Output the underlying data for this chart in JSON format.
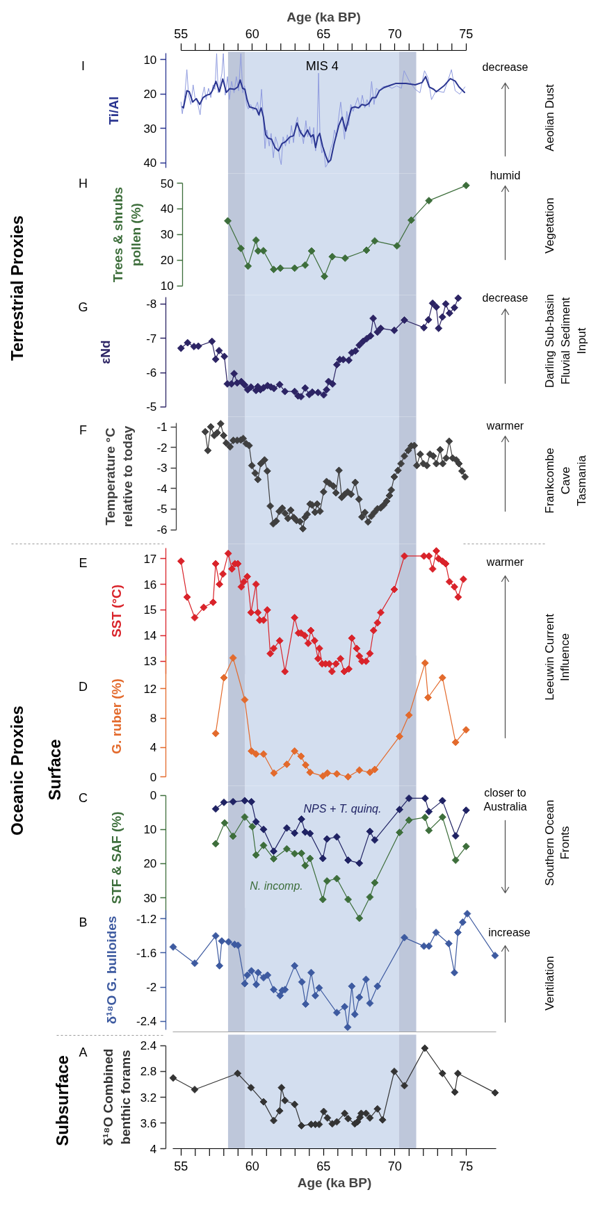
{
  "chart_data": [
    {
      "type": "line",
      "title": "I",
      "ylabel": "Ti/Al",
      "xlabel": "Age (ka BP)",
      "xlim": [
        55,
        75
      ],
      "xticks": [
        55,
        {
          "value": 56,
          "label": null
        },
        {
          "value": 57,
          "label": null
        },
        {
          "value": 58,
          "label": null
        },
        {
          "value": 59,
          "label": null
        },
        60,
        {
          "value": 61,
          "label": null
        },
        {
          "value": 62,
          "label": null
        },
        {
          "value": 63,
          "label": null
        },
        {
          "value": 64,
          "label": null
        },
        65,
        {
          "value": 66,
          "label": null
        },
        {
          "value": 67,
          "label": null
        },
        {
          "value": 68,
          "label": null
        },
        {
          "value": 69,
          "label": null
        },
        70,
        {
          "value": 71,
          "label": null
        },
        {
          "value": 72,
          "label": null
        },
        {
          "value": 73,
          "label": null
        },
        {
          "value": 74,
          "label": null
        },
        75
      ],
      "ylim": [
        41.5,
        8
      ],
      "yticks": [
        10,
        20,
        30,
        40
      ],
      "series": [
        {
          "color": "#8e9ade",
          "x": [
            55.0,
            55.09,
            55.25,
            55.41,
            55.53,
            55.69,
            55.85,
            55.98,
            56.15,
            56.34,
            56.47,
            56.63,
            56.76,
            56.93,
            57.09,
            57.25,
            57.38,
            57.5,
            57.61,
            57.74,
            57.87,
            57.97,
            58.1,
            58.26,
            58.39,
            58.55,
            58.72,
            58.88,
            59.04,
            59.2,
            59.33,
            59.46,
            59.59,
            59.72,
            59.89,
            60.05,
            60.21,
            60.37,
            60.5,
            60.65,
            60.78,
            60.89,
            61.02,
            61.19,
            61.32,
            61.48,
            61.63,
            61.79,
            61.92,
            62.03,
            62.16,
            62.33,
            62.46,
            62.6,
            62.75,
            62.89,
            63.04,
            63.17,
            63.3,
            63.43,
            63.59,
            63.76,
            63.89,
            64.03,
            64.18,
            64.31,
            64.44,
            64.55,
            64.65,
            64.75,
            64.88,
            65.01,
            65.14,
            65.25,
            65.37,
            65.5,
            65.63,
            65.77,
            65.9,
            66.07,
            66.2,
            66.34,
            66.47,
            66.63,
            66.76,
            66.91,
            67.07,
            67.24,
            67.4,
            67.56,
            67.72,
            67.89,
            68.05,
            68.21,
            68.37,
            68.54,
            68.7,
            68.91,
            69.15,
            69.48,
            69.8,
            70.13,
            70.46,
            70.65,
            71.02,
            71.43,
            71.76,
            72.08,
            72.33,
            72.57,
            72.89,
            73.44,
            73.71,
            73.97,
            74.23,
            74.55,
            74.92
          ],
          "values": [
            22.3,
            25.7,
            21.0,
            12.9,
            20.3,
            23.0,
            17.3,
            21.0,
            22.3,
            26.0,
            21.0,
            17.9,
            21.6,
            18.3,
            21.0,
            17.3,
            18.6,
            8.2,
            19.6,
            16.9,
            13.9,
            8.2,
            20.3,
            14.9,
            21.6,
            16.3,
            19.6,
            14.9,
            19.0,
            8.2,
            19.6,
            17.6,
            23.0,
            24.3,
            23.0,
            24.7,
            24.0,
            22.3,
            26.4,
            18.6,
            27.7,
            35.8,
            30.4,
            35.1,
            31.4,
            38.5,
            32.4,
            34.8,
            38.5,
            40.5,
            32.4,
            35.1,
            31.8,
            34.4,
            29.1,
            34.1,
            28.7,
            26.7,
            32.4,
            30.4,
            34.4,
            27.7,
            32.4,
            29.4,
            34.4,
            29.7,
            36.5,
            31.8,
            13.9,
            32.4,
            37.1,
            35.8,
            41.2,
            40.5,
            38.5,
            35.8,
            34.4,
            30.4,
            32.4,
            26.4,
            22.3,
            27.7,
            33.1,
            25.0,
            29.1,
            23.0,
            25.0,
            23.0,
            21.0,
            24.0,
            20.3,
            24.0,
            21.6,
            23.7,
            16.3,
            23.0,
            18.3,
            19.0,
            17.9,
            17.6,
            18.3,
            17.6,
            18.3,
            13.2,
            16.3,
            18.6,
            19.6,
            13.2,
            15.3,
            21.6,
            19.0,
            19.5,
            16.2,
            12.9,
            19.0,
            20.0,
            17.9
          ]
        },
        {
          "color": "#2a3590",
          "x": [
            55.09,
            55.17,
            55.41,
            55.58,
            55.82,
            56.07,
            56.31,
            56.55,
            56.8,
            57.04,
            57.2,
            57.45,
            57.69,
            57.93,
            58.18,
            58.42,
            58.75,
            58.99,
            59.15,
            59.32,
            59.48,
            59.64,
            59.8,
            60.05,
            60.29,
            60.46,
            60.62,
            60.78,
            60.94,
            61.11,
            61.35,
            61.59,
            61.84,
            62.08,
            62.33,
            62.65,
            62.89,
            63.14,
            63.38,
            63.63,
            63.87,
            64.11,
            64.28,
            64.44,
            64.6,
            64.73,
            64.93,
            65.17,
            65.33,
            65.5,
            65.74,
            66.07,
            66.31,
            66.55,
            66.8,
            66.96,
            67.2,
            67.45,
            67.69,
            67.93,
            68.18,
            68.42,
            68.67,
            68.91,
            69.24,
            69.64,
            70.05,
            70.78,
            71.43,
            71.92,
            72.16,
            72.41,
            72.73,
            72.91,
            73.44,
            73.89,
            74.23,
            74.5,
            74.89
          ],
          "values": [
            23.7,
            24.0,
            19.0,
            19.3,
            22.3,
            21.3,
            23.0,
            21.0,
            20.3,
            20.0,
            19.0,
            16.3,
            19.3,
            15.6,
            19.5,
            18.4,
            18.6,
            17.9,
            15.9,
            18.3,
            18.6,
            21.7,
            23.7,
            24.0,
            24.3,
            26.0,
            24.0,
            26.7,
            31.8,
            32.8,
            33.1,
            35.5,
            36.5,
            34.4,
            33.8,
            32.4,
            32.1,
            28.4,
            31.1,
            32.4,
            30.4,
            32.4,
            31.8,
            35.5,
            32.4,
            31.4,
            35.1,
            38.1,
            39.8,
            39.1,
            34.4,
            29.1,
            26.7,
            30.7,
            26.4,
            24.0,
            23.7,
            24.0,
            23.0,
            23.3,
            22.7,
            21.0,
            21.0,
            19.0,
            18.1,
            17.5,
            16.9,
            16.9,
            17.3,
            16.6,
            14.9,
            17.9,
            18.6,
            19.3,
            17.6,
            15.5,
            16.2,
            17.9,
            19.5
          ]
        }
      ],
      "bands": [
        {
          "axis": "x",
          "from": 58.3,
          "to": 59.5,
          "color": "#bec7da"
        },
        {
          "axis": "x",
          "from": 59.5,
          "to": 70.3,
          "color": "#d3deef",
          "label": "MIS 4"
        },
        {
          "axis": "x",
          "from": 70.3,
          "to": 71.5,
          "color": "#bec7da"
        }
      ],
      "annotations": [
        "decrease",
        "Aeolian Dust",
        "Terrestrial Proxies"
      ]
    },
    {
      "type": "line",
      "title": "H",
      "ylabel": "Trees & shrubs pollen (%)",
      "xlim": [
        55,
        75
      ],
      "tick_labels": "y",
      "ylim": [
        10,
        50
      ],
      "yticks": [
        10,
        20,
        30,
        40,
        50
      ],
      "marker": "diamond",
      "series": [
        {
          "color": "#3d6e3b",
          "x": [
            58.28,
            59.2,
            59.7,
            60.26,
            60.41,
            60.78,
            61.5,
            61.97,
            62.97,
            63.71,
            64.16,
            65.06,
            65.61,
            66.51,
            68.01,
            68.59,
            70.15,
            71.15,
            72.39,
            75.0
          ],
          "values": [
            35.3,
            24.6,
            17.7,
            27.8,
            23.6,
            23.7,
            16.4,
            16.9,
            16.9,
            18.1,
            23.6,
            13.7,
            21.4,
            20.8,
            23.9,
            27.5,
            25.6,
            35.6,
            43.2,
            49.1
          ]
        }
      ],
      "bands": [
        {
          "axis": "x",
          "from": 58.3,
          "to": 59.5,
          "color": "#bec7da"
        },
        {
          "axis": "x",
          "from": 59.5,
          "to": 70.3,
          "color": "#d3deef"
        },
        {
          "axis": "x",
          "from": 70.3,
          "to": 71.5,
          "color": "#bec7da"
        }
      ],
      "annotations": [
        "humid",
        "Vegetation"
      ]
    },
    {
      "type": "line",
      "title": "G",
      "ylabel": "εNd",
      "xlim": [
        55,
        75
      ],
      "tick_labels": "y",
      "ylim": [
        -5,
        -8.2
      ],
      "yticks": [
        -8,
        -7,
        -6,
        -5
      ],
      "marker": "diamond",
      "series": [
        {
          "color": "#2c2464",
          "x": [
            55.0,
            55.46,
            55.91,
            56.22,
            57.17,
            57.43,
            57.67,
            58.04,
            58.25,
            58.54,
            58.73,
            58.94,
            59.23,
            59.47,
            59.68,
            59.91,
            60.26,
            60.39,
            60.57,
            60.79,
            61.07,
            61.31,
            61.52,
            61.92,
            62.29,
            62.97,
            63.21,
            63.42,
            63.71,
            64.0,
            64.21,
            64.61,
            65.01,
            65.21,
            65.35,
            65.63,
            65.93,
            66.14,
            66.38,
            66.77,
            66.98,
            67.24,
            67.51,
            67.77,
            68.03,
            68.3,
            68.48,
            68.78,
            69.01,
            69.96,
            70.67,
            72.04,
            72.36,
            72.65,
            72.91,
            73.07,
            73.34,
            73.57,
            73.83,
            74.18,
            74.44
          ],
          "values": [
            -6.71,
            -6.87,
            -6.76,
            -6.77,
            -6.91,
            -6.39,
            -6.64,
            -6.47,
            -5.67,
            -5.67,
            -5.97,
            -5.7,
            -5.74,
            -5.64,
            -5.5,
            -5.58,
            -5.48,
            -5.59,
            -5.5,
            -5.56,
            -5.62,
            -5.58,
            -5.54,
            -5.65,
            -5.45,
            -5.45,
            -5.32,
            -5.3,
            -5.55,
            -5.36,
            -5.43,
            -5.42,
            -5.35,
            -5.5,
            -5.74,
            -5.67,
            -6.23,
            -6.38,
            -6.38,
            -6.36,
            -6.58,
            -6.63,
            -6.8,
            -6.91,
            -6.99,
            -7.07,
            -7.58,
            -7.18,
            -7.29,
            -7.23,
            -7.53,
            -7.31,
            -7.54,
            -8.02,
            -7.91,
            -7.29,
            -7.62,
            -8.0,
            -7.73,
            -7.89,
            -8.17
          ]
        }
      ],
      "bands": [
        {
          "axis": "x",
          "from": 58.3,
          "to": 59.5,
          "color": "#bec7da"
        },
        {
          "axis": "x",
          "from": 59.5,
          "to": 70.3,
          "color": "#d3deef"
        },
        {
          "axis": "x",
          "from": 70.3,
          "to": 71.5,
          "color": "#bec7da"
        }
      ],
      "annotations": [
        "decrease",
        "Darling Sub-basin Fluvial Sediment Input"
      ]
    },
    {
      "type": "line",
      "title": "F",
      "ylabel": "Temperature °C relative to today",
      "xlim": [
        55,
        75
      ],
      "tick_labels": "y",
      "ylim": [
        -6,
        -0.8
      ],
      "yticks": [
        -6,
        -5,
        -4,
        -3,
        -2,
        -1
      ],
      "marker": "diamond",
      "series": [
        {
          "color": "#3f3f3f",
          "x": [
            56.7,
            56.88,
            57.09,
            57.33,
            57.54,
            57.78,
            57.99,
            58.17,
            58.44,
            58.67,
            58.94,
            59.2,
            59.36,
            59.57,
            59.78,
            59.97,
            60.2,
            60.39,
            60.6,
            60.86,
            61.05,
            61.26,
            61.47,
            61.68,
            61.89,
            62.1,
            62.3,
            62.5,
            62.7,
            62.9,
            63.1,
            63.35,
            63.55,
            63.7,
            63.85,
            64.05,
            64.2,
            64.4,
            64.55,
            64.75,
            65.0,
            65.21,
            65.42,
            65.69,
            65.87,
            66.08,
            66.27,
            66.48,
            66.69,
            66.93,
            67.22,
            67.48,
            67.69,
            67.9,
            68.12,
            68.35,
            68.56,
            68.78,
            69.01,
            69.22,
            69.43,
            69.62,
            69.75,
            69.96,
            70.22,
            70.43,
            70.67,
            70.94,
            71.15,
            71.36,
            71.54,
            71.78,
            71.99,
            72.25,
            72.46,
            72.7,
            72.91,
            73.18,
            73.36,
            73.6,
            73.81,
            74.05,
            74.31,
            74.5,
            74.71,
            74.92
          ],
          "values": [
            -1.24,
            -2.15,
            -1.0,
            -1.42,
            -1.29,
            -0.85,
            -1.42,
            -1.79,
            -1.97,
            -1.66,
            -1.66,
            -1.64,
            -1.57,
            -1.82,
            -1.91,
            -2.88,
            -3.25,
            -3.56,
            -2.79,
            -2.61,
            -3.15,
            -4.85,
            -5.71,
            -5.58,
            -5.11,
            -4.95,
            -5.2,
            -5.45,
            -5.05,
            -5.4,
            -5.55,
            -5.6,
            -5.95,
            -5.4,
            -5.25,
            -4.75,
            -4.8,
            -5.15,
            -4.75,
            -5.1,
            -4.16,
            -3.66,
            -3.75,
            -3.88,
            -4.21,
            -3.12,
            -4.43,
            -4.28,
            -4.16,
            -4.28,
            -3.7,
            -4.52,
            -5.38,
            -5.16,
            -5.62,
            -5.34,
            -5.16,
            -4.98,
            -4.94,
            -4.8,
            -4.61,
            -4.34,
            -4.07,
            -3.43,
            -3.12,
            -2.79,
            -2.42,
            -2.15,
            -1.93,
            -1.91,
            -2.88,
            -2.33,
            -2.79,
            -2.88,
            -2.33,
            -2.42,
            -2.79,
            -2.11,
            -2.79,
            -2.52,
            -1.7,
            -2.52,
            -2.61,
            -2.79,
            -3.15,
            -3.43
          ]
        }
      ],
      "bands": [
        {
          "axis": "x",
          "from": 58.3,
          "to": 59.5,
          "color": "#bec7da"
        },
        {
          "axis": "x",
          "from": 59.5,
          "to": 70.3,
          "color": "#d3deef"
        },
        {
          "axis": "x",
          "from": 70.3,
          "to": 71.5,
          "color": "#bec7da"
        }
      ],
      "annotations": [
        "warmer",
        "Frankcombe Cave Tasmania"
      ]
    },
    {
      "type": "line",
      "title": "E",
      "ylabel": "SST (°C)",
      "xlim": [
        55,
        75
      ],
      "tick_labels": "y",
      "ylim": [
        12.5,
        17.4
      ],
      "yticks": [
        13,
        14,
        15,
        16,
        17
      ],
      "marker": "diamond",
      "series": [
        {
          "color": "#d9232a",
          "x": [
            55.0,
            55.43,
            55.96,
            56.59,
            57.25,
            57.43,
            57.7,
            57.94,
            58.31,
            58.57,
            58.78,
            58.99,
            59.23,
            59.41,
            59.65,
            59.91,
            60.26,
            60.39,
            60.52,
            60.79,
            61.05,
            61.26,
            61.5,
            61.92,
            62.29,
            62.97,
            63.24,
            63.42,
            63.68,
            63.92,
            64.11,
            64.37,
            64.61,
            64.71,
            64.9,
            65.14,
            65.4,
            65.59,
            65.87,
            66.19,
            66.45,
            66.77,
            66.98,
            67.32,
            67.51,
            67.69,
            67.98,
            68.25,
            68.51,
            68.78,
            69.01,
            69.96,
            70.67,
            72.04,
            72.39,
            72.65,
            72.91,
            73.07,
            73.34,
            73.57,
            73.83,
            74.18,
            74.44,
            74.81
          ],
          "values": [
            16.9,
            15.5,
            14.7,
            15.1,
            15.3,
            16.8,
            16.0,
            16.4,
            17.2,
            16.6,
            16.8,
            16.8,
            15.9,
            16.1,
            16.3,
            14.9,
            16.0,
            14.9,
            14.6,
            14.6,
            15.0,
            13.3,
            13.5,
            13.8,
            12.6,
            14.7,
            14.1,
            14.1,
            14.0,
            13.7,
            14.2,
            13.8,
            13.1,
            13.5,
            12.9,
            12.9,
            12.9,
            12.6,
            12.9,
            13.1,
            12.6,
            12.7,
            13.9,
            13.5,
            13.2,
            13.0,
            13.0,
            13.3,
            14.2,
            14.5,
            14.9,
            15.8,
            17.1,
            17.1,
            17.1,
            16.6,
            17.3,
            17.0,
            16.9,
            16.8,
            16.1,
            15.9,
            15.5,
            16.2
          ]
        }
      ],
      "bands": [
        {
          "axis": "x",
          "from": 58.3,
          "to": 59.5,
          "color": "#bec7da"
        },
        {
          "axis": "x",
          "from": 59.5,
          "to": 70.3,
          "color": "#d3deef"
        },
        {
          "axis": "x",
          "from": 70.3,
          "to": 71.5,
          "color": "#bec7da"
        }
      ],
      "annotations": [
        "warmer",
        "Leeuwin Current Influence",
        "Oceanic Proxies"
      ]
    },
    {
      "type": "line",
      "title": "D",
      "ylabel": "G. ruber (%)",
      "xlim": [
        55,
        75
      ],
      "tick_labels": "y",
      "ylim": [
        0,
        16.5
      ],
      "yticks": [
        0,
        4,
        8,
        12
      ],
      "marker": "diamond",
      "series": [
        {
          "color": "#e36a2c",
          "x": [
            57.43,
            58.01,
            58.65,
            59.47,
            59.94,
            60.26,
            60.79,
            61.52,
            62.42,
            62.97,
            63.42,
            63.74,
            64.05,
            64.95,
            65.27,
            65.93,
            66.72,
            67.51,
            68.25,
            68.59,
            70.33,
            70.99,
            72.12,
            72.33,
            73.34,
            74.26,
            75.0
          ],
          "values": [
            5.9,
            13.5,
            16.2,
            10.5,
            3.5,
            3.1,
            3.1,
            0.5,
            1.7,
            3.5,
            2.8,
            1.6,
            0.6,
            0.1,
            0.5,
            0.4,
            0.0,
            0.9,
            0.6,
            1.0,
            5.5,
            8.4,
            15.5,
            10.8,
            13.5,
            4.7,
            6.4
          ]
        }
      ],
      "bands": [
        {
          "axis": "x",
          "from": 58.3,
          "to": 59.5,
          "color": "#bec7da"
        },
        {
          "axis": "x",
          "from": 59.5,
          "to": 70.3,
          "color": "#d3deef"
        },
        {
          "axis": "x",
          "from": 70.3,
          "to": 71.5,
          "color": "#bec7da"
        }
      ],
      "annotations": [
        "Surface"
      ]
    },
    {
      "type": "line",
      "title": "C",
      "ylabel": "STF & SAF (%)",
      "xlim": [
        55,
        75
      ],
      "tick_labels": "y",
      "ylim": [
        36.5,
        0
      ],
      "yticks": [
        0,
        10,
        20,
        30
      ],
      "marker": "diamond",
      "series": [
        {
          "name": "NPS + T. quinq.",
          "color": "#1f2263",
          "x": [
            57.43,
            58.01,
            58.65,
            59.47,
            59.94,
            60.26,
            60.79,
            61.5,
            62.42,
            62.97,
            63.45,
            63.71,
            64.05,
            64.95,
            65.24,
            65.93,
            66.72,
            67.51,
            68.25,
            68.59,
            70.33,
            70.99,
            72.12,
            72.39,
            73.34,
            74.26,
            75.0
          ],
          "values": [
            4.0,
            2.1,
            1.9,
            1.6,
            1.9,
            7.8,
            10.0,
            16.4,
            9.6,
            11.1,
            7.0,
            10.8,
            11.2,
            18.5,
            12.8,
            12.2,
            19.0,
            19.9,
            10.6,
            13.1,
            4.2,
            0.9,
            0.9,
            4.8,
            1.6,
            11.9,
            4.4
          ]
        },
        {
          "name": "N. incomp.",
          "color": "#3d6e3b",
          "x": [
            57.43,
            58.06,
            58.65,
            59.47,
            60.0,
            60.26,
            60.79,
            61.5,
            62.42,
            62.97,
            63.45,
            63.71,
            64.05,
            64.95,
            65.24,
            65.93,
            66.72,
            67.51,
            68.25,
            68.59,
            70.33,
            70.99,
            72.12,
            72.39,
            73.34,
            74.26,
            75.0
          ],
          "values": [
            14.2,
            8.1,
            12.0,
            6.4,
            9.2,
            17.5,
            14.7,
            18.6,
            15.7,
            17.1,
            17.0,
            20.6,
            18.5,
            30.5,
            25.1,
            24.4,
            30.5,
            36.0,
            29.8,
            25.6,
            10.9,
            7.3,
            6.5,
            10.3,
            6.4,
            19.0,
            15.0
          ]
        }
      ],
      "bands": [
        {
          "axis": "x",
          "from": 58.3,
          "to": 59.5,
          "color": "#bec7da"
        },
        {
          "axis": "x",
          "from": 59.5,
          "to": 70.3,
          "color": "#d3deef"
        },
        {
          "axis": "x",
          "from": 70.3,
          "to": 71.5,
          "color": "#bec7da"
        }
      ],
      "annotations": [
        "closer to Australia",
        "Southern Ocean Fronts"
      ]
    },
    {
      "type": "line",
      "title": "B",
      "ylabel": "δ¹⁸O G. bulloides",
      "xlim": [
        54.4,
        77.1
      ],
      "tick_labels": "y",
      "ylim": [
        -2.5,
        -1.1
      ],
      "yticks": [
        -2.4,
        -2,
        -1.6,
        -1.2
      ],
      "marker": "diamond",
      "series": [
        {
          "color": "#3d5aa0",
          "x": [
            54.45,
            55.96,
            57.43,
            57.7,
            57.86,
            58.33,
            58.76,
            59.0,
            59.47,
            59.65,
            59.94,
            60.28,
            60.41,
            60.79,
            61.07,
            61.5,
            61.95,
            62.1,
            62.29,
            62.97,
            63.48,
            63.74,
            64.13,
            64.42,
            64.69,
            65.93,
            66.48,
            66.69,
            66.98,
            67.19,
            67.51,
            67.98,
            68.25,
            68.78,
            70.67,
            72.04,
            72.39,
            72.89,
            73.78,
            74.18,
            74.42,
            74.76,
            75.08,
            77.03
          ],
          "values": [
            -1.53,
            -1.72,
            -1.4,
            -1.75,
            -1.46,
            -1.47,
            -1.5,
            -1.51,
            -1.96,
            -1.86,
            -1.81,
            -1.97,
            -1.83,
            -1.89,
            -1.86,
            -2.03,
            -2.1,
            -2.04,
            -2.03,
            -1.75,
            -1.94,
            -2.2,
            -1.83,
            -2.1,
            -2.01,
            -2.3,
            -2.23,
            -2.47,
            -1.99,
            -2.32,
            -2.12,
            -1.91,
            -2.19,
            -1.99,
            -1.42,
            -1.52,
            -1.52,
            -1.36,
            -1.49,
            -1.83,
            -1.36,
            -1.24,
            -1.14,
            -1.63
          ]
        }
      ],
      "bands": [
        {
          "axis": "x",
          "from": 58.3,
          "to": 59.5,
          "color": "#bec7da"
        },
        {
          "axis": "x",
          "from": 59.5,
          "to": 70.3,
          "color": "#d3deef"
        },
        {
          "axis": "x",
          "from": 70.3,
          "to": 71.5,
          "color": "#bec7da"
        }
      ],
      "annotations": [
        "increase",
        "Ventilation"
      ]
    },
    {
      "type": "line",
      "title": "A",
      "ylabel": "δ¹⁸O Combined benthic forams",
      "xlabel": "Age (ka BP)",
      "xlim": [
        54.4,
        77.1
      ],
      "xticks": [
        55,
        {
          "value": 56,
          "label": null
        },
        {
          "value": 57,
          "label": null
        },
        {
          "value": 58,
          "label": null
        },
        {
          "value": 59,
          "label": null
        },
        60,
        {
          "value": 61,
          "label": null
        },
        {
          "value": 62,
          "label": null
        },
        {
          "value": 63,
          "label": null
        },
        {
          "value": 64,
          "label": null
        },
        65,
        {
          "value": 66,
          "label": null
        },
        {
          "value": 67,
          "label": null
        },
        {
          "value": 68,
          "label": null
        },
        {
          "value": 69,
          "label": null
        },
        70,
        {
          "value": 71,
          "label": null
        },
        {
          "value": 72,
          "label": null
        },
        {
          "value": 73,
          "label": null
        },
        {
          "value": 74,
          "label": null
        },
        75
      ],
      "ylim": [
        4,
        2.4
      ],
      "yticks": [
        2.4,
        2.8,
        3.2,
        3.6,
        4
      ],
      "marker": "diamond",
      "series": [
        {
          "color": "#333333",
          "x": [
            54.45,
            55.96,
            58.97,
            59.91,
            60.79,
            61.5,
            61.92,
            62.05,
            62.29,
            62.97,
            63.45,
            64.13,
            64.42,
            64.69,
            65.01,
            65.27,
            65.61,
            65.93,
            66.48,
            66.72,
            67.19,
            67.38,
            67.56,
            67.64,
            67.98,
            68.25,
            68.78,
            69.14,
            69.96,
            70.67,
            72.1,
            73.34,
            74.21,
            74.42,
            77.03
          ],
          "values": [
            2.9,
            3.08,
            2.83,
            3.05,
            3.27,
            3.56,
            3.41,
            3.05,
            3.25,
            3.31,
            3.64,
            3.62,
            3.62,
            3.62,
            3.42,
            3.52,
            3.61,
            3.58,
            3.45,
            3.53,
            3.61,
            3.58,
            3.51,
            3.45,
            3.45,
            3.52,
            3.38,
            3.55,
            2.8,
            3.02,
            2.44,
            2.83,
            3.12,
            2.83,
            3.13
          ]
        }
      ],
      "bands": [
        {
          "axis": "x",
          "from": 58.3,
          "to": 59.5,
          "color": "#bec7da"
        },
        {
          "axis": "x",
          "from": 59.5,
          "to": 70.3,
          "color": "#d3deef"
        },
        {
          "axis": "x",
          "from": 70.3,
          "to": 71.5,
          "color": "#bec7da"
        }
      ],
      "annotations": [
        "Subsurface"
      ]
    }
  ]
}
